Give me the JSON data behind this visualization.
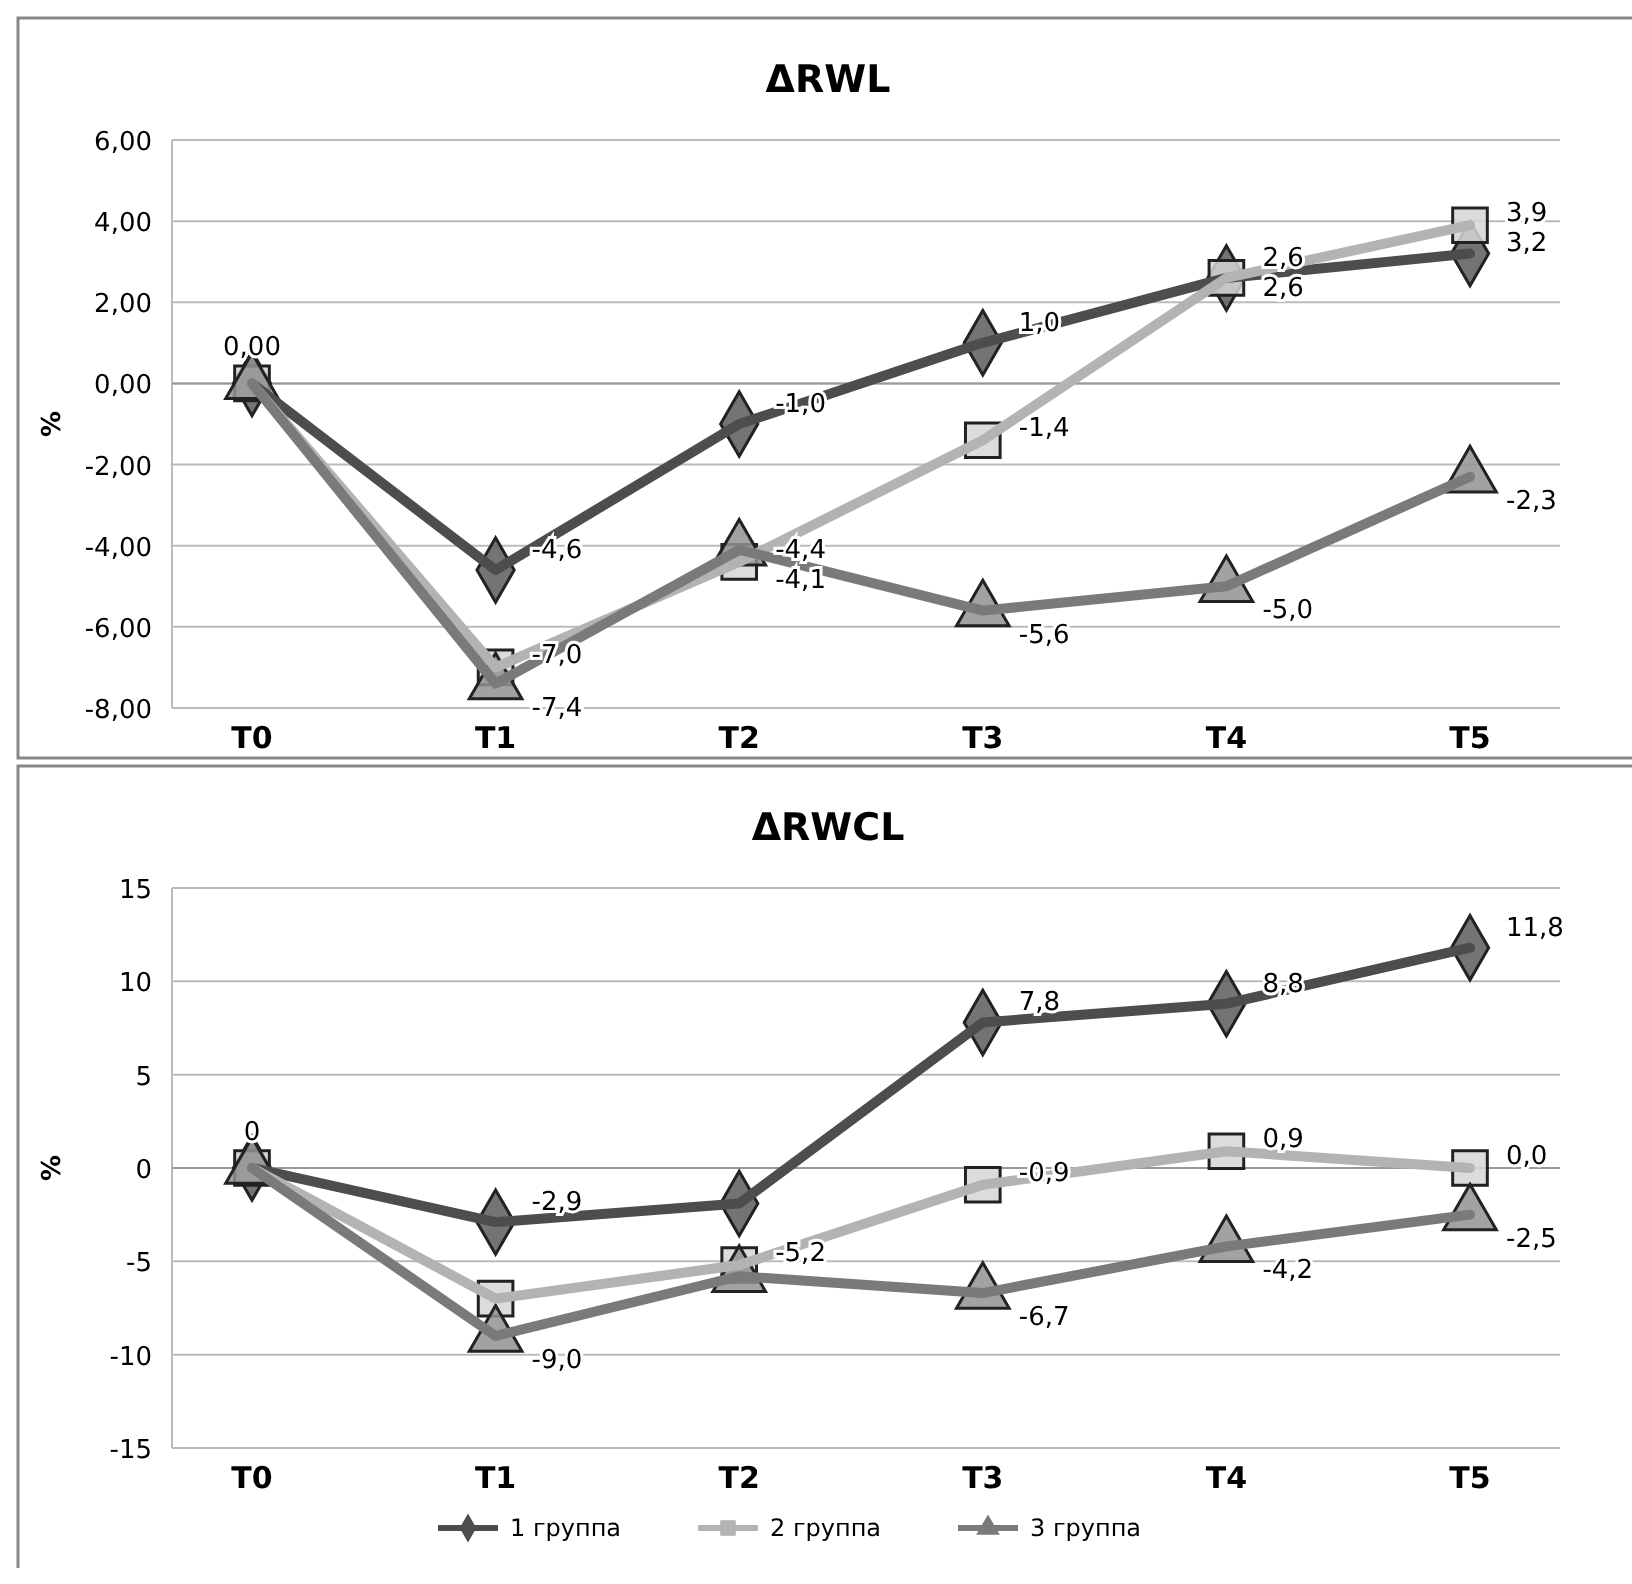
{
  "chart_data": [
    {
      "type": "line",
      "title": "ΔRWL",
      "ylabel": "%",
      "categories": [
        "T0",
        "T1",
        "T2",
        "T3",
        "T4",
        "T5"
      ],
      "ylim": [
        -8,
        6
      ],
      "yticks": [
        {
          "value": -8,
          "label": "-8,00"
        },
        {
          "value": -6,
          "label": "-6,00"
        },
        {
          "value": -4,
          "label": "-4,00"
        },
        {
          "value": -2,
          "label": "-2,00"
        },
        {
          "value": 0,
          "label": "0,00"
        },
        {
          "value": 2,
          "label": "2,00"
        },
        {
          "value": 4,
          "label": "4,00"
        },
        {
          "value": 6,
          "label": "6,00"
        }
      ],
      "grid": "y",
      "legend": false,
      "series": [
        {
          "color": "#4d4d4d",
          "marker": "diamond",
          "values": [
            0,
            -4.6,
            -1.0,
            1.0,
            2.6,
            3.2
          ],
          "value_labels": [
            "0,00",
            "-4,6",
            "-1,0",
            "1,0",
            "2,6",
            "3,2"
          ]
        },
        {
          "color": "#b3b3b3",
          "marker": "square",
          "values": [
            0,
            -7.0,
            -4.4,
            -1.4,
            2.6,
            3.9
          ],
          "value_labels": [
            null,
            "-7,0",
            "-4,4",
            "-1,4",
            "2,6",
            "3,9"
          ]
        },
        {
          "color": "#7a7a7a",
          "marker": "triangle",
          "values": [
            0,
            -7.4,
            -4.1,
            -5.6,
            -5.0,
            -2.3
          ],
          "value_labels": [
            null,
            "-7,4",
            "-4,1",
            "-5,6",
            "-5,0",
            "-2,3"
          ]
        }
      ]
    },
    {
      "type": "line",
      "title": "ΔRWCL",
      "ylabel": "%",
      "categories": [
        "T0",
        "T1",
        "T2",
        "T3",
        "T4",
        "T5"
      ],
      "ylim": [
        -15,
        15
      ],
      "yticks": [
        -15,
        -10,
        -5,
        0,
        5,
        10,
        15
      ],
      "grid": "y",
      "legend": "bottom",
      "series": [
        {
          "name": "1 группа",
          "color": "#4d4d4d",
          "marker": "diamond",
          "values": [
            0,
            -2.9,
            -1.9,
            7.8,
            8.8,
            11.8
          ],
          "value_labels": [
            "0",
            "-2,9",
            null,
            "7,8",
            "8,8",
            "11,8"
          ]
        },
        {
          "name": "2 группа",
          "color": "#b3b3b3",
          "marker": "square",
          "values": [
            0,
            -7.0,
            -5.2,
            -0.9,
            0.9,
            0.0
          ],
          "value_labels": [
            null,
            null,
            "-5,2",
            "-0,9",
            "0,9",
            "0,0"
          ]
        },
        {
          "name": "3 группа",
          "color": "#7a7a7a",
          "marker": "triangle",
          "values": [
            0,
            -9.0,
            -5.8,
            -6.7,
            -4.2,
            -2.5
          ],
          "value_labels": [
            null,
            "-9,0",
            null,
            "-6,7",
            "-4,2",
            "-2,5"
          ]
        }
      ]
    }
  ]
}
